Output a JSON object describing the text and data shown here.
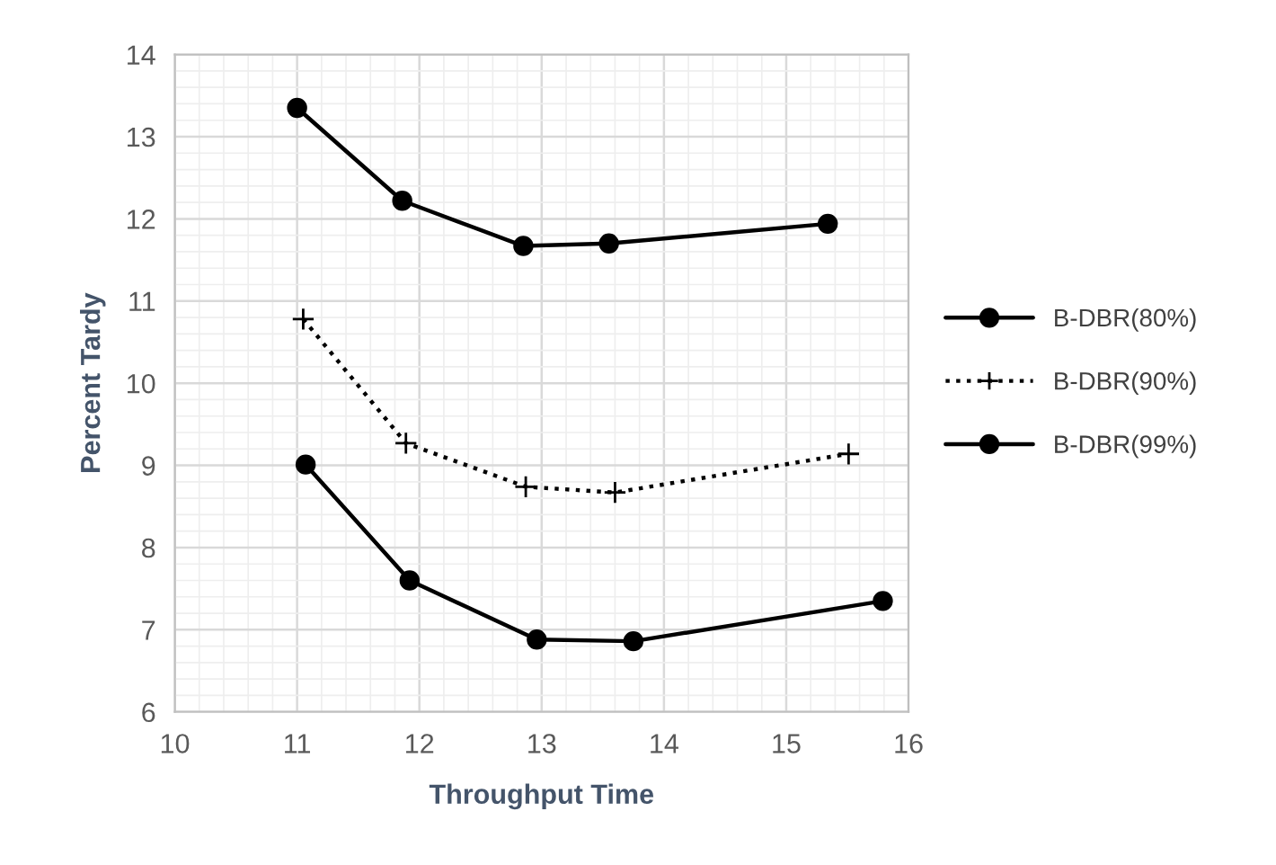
{
  "chart_data": {
    "type": "line",
    "xlabel": "Throughput Time",
    "ylabel": "Percent Tardy",
    "xlim": [
      10,
      16
    ],
    "xticks": [
      10,
      11,
      12,
      13,
      14,
      15,
      16
    ],
    "ylim": [
      6,
      14
    ],
    "yticks": [
      6,
      7,
      8,
      9,
      10,
      11,
      12,
      13,
      14
    ],
    "grid": true,
    "legend": "right",
    "series": [
      {
        "name": "B-DBR(80%)",
        "color": "#000000",
        "x": [
          11.0,
          11.86,
          12.85,
          13.55,
          15.34
        ],
        "values": [
          13.35,
          12.22,
          11.67,
          11.7,
          11.94
        ],
        "marker": "circle",
        "line_style": "solid"
      },
      {
        "name": "B-DBR(90%)",
        "color": "#000000",
        "x": [
          11.05,
          11.89,
          12.87,
          13.6,
          15.51
        ],
        "values": [
          10.78,
          9.27,
          8.74,
          8.67,
          9.14
        ],
        "marker": "cross",
        "line_style": "dotted"
      },
      {
        "name": "B-DBR(99%)",
        "color": "#000000",
        "x": [
          11.07,
          11.92,
          12.96,
          13.75,
          15.79
        ],
        "values": [
          9.01,
          7.6,
          6.88,
          6.86,
          7.35
        ],
        "marker": "circle",
        "line_style": "solid"
      }
    ]
  }
}
